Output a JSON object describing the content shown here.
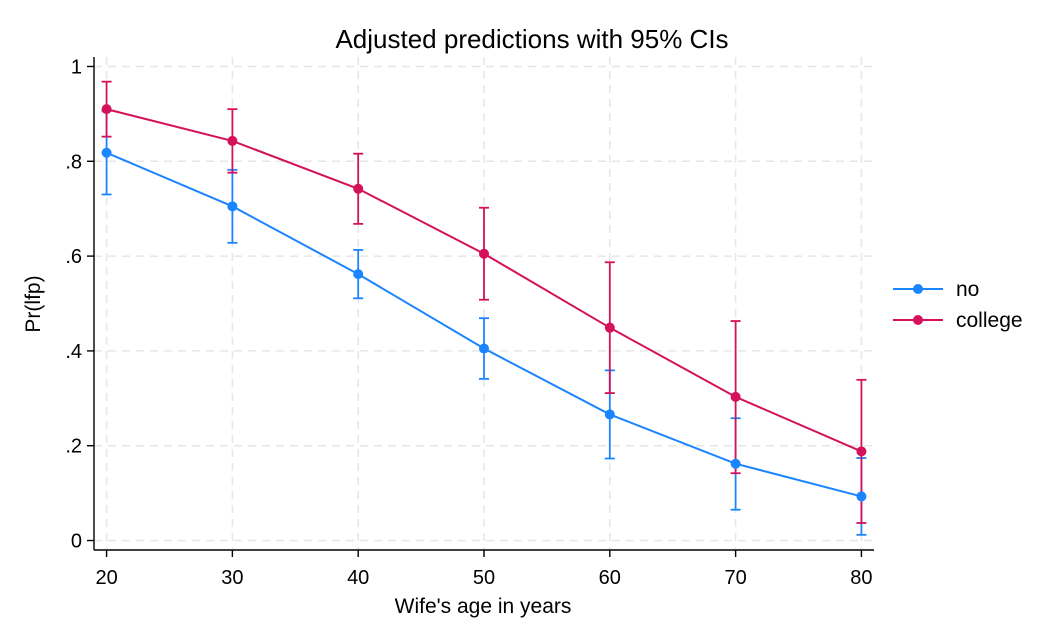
{
  "chart_data": {
    "type": "line",
    "title": "Adjusted predictions with 95% CIs",
    "xlabel": "Wife's age in years",
    "ylabel": "Pr(lfp)",
    "x": [
      20,
      30,
      40,
      50,
      60,
      70,
      80
    ],
    "x_ticks": [
      {
        "value": 20,
        "label": "20"
      },
      {
        "value": 30,
        "label": "30"
      },
      {
        "value": 40,
        "label": "40"
      },
      {
        "value": 50,
        "label": "50"
      },
      {
        "value": 60,
        "label": "60"
      },
      {
        "value": 70,
        "label": "70"
      },
      {
        "value": 80,
        "label": "80"
      }
    ],
    "y_ticks": [
      {
        "value": 0,
        "label": "0"
      },
      {
        "value": 0.2,
        "label": ".2"
      },
      {
        "value": 0.4,
        "label": ".4"
      },
      {
        "value": 0.6,
        "label": ".6"
      },
      {
        "value": 0.8,
        "label": ".8"
      },
      {
        "value": 1,
        "label": "1"
      }
    ],
    "xlim": [
      19,
      81
    ],
    "ylim": [
      -0.02,
      1.02
    ],
    "grid": true,
    "legend_position": "right",
    "series": [
      {
        "name": "no",
        "color": "#1a85ff",
        "values": [
          0.818,
          0.705,
          0.562,
          0.405,
          0.266,
          0.162,
          0.093
        ],
        "ci_low": [
          0.73,
          0.628,
          0.511,
          0.341,
          0.173,
          0.065,
          0.012
        ],
        "ci_high": [
          0.906,
          0.782,
          0.613,
          0.469,
          0.359,
          0.258,
          0.174
        ]
      },
      {
        "name": "college",
        "color": "#d41159",
        "values": [
          0.91,
          0.843,
          0.742,
          0.605,
          0.449,
          0.303,
          0.188
        ],
        "ci_low": [
          0.852,
          0.776,
          0.668,
          0.508,
          0.311,
          0.142,
          0.037
        ],
        "ci_high": [
          0.968,
          0.91,
          0.816,
          0.702,
          0.587,
          0.463,
          0.339
        ]
      }
    ]
  }
}
